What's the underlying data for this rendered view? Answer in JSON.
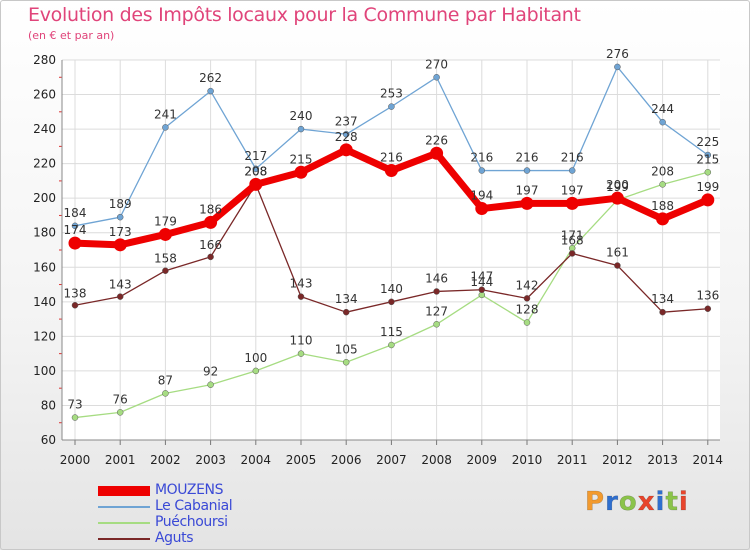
{
  "title": "Evolution des Impôts locaux pour la Commune par Habitant",
  "subtitle": "(en € et par an)",
  "brand": {
    "letters": [
      "P",
      "r",
      "o",
      "x",
      "i",
      "t",
      "i"
    ],
    "colors": [
      "#f29a2e",
      "#2f6fcf",
      "#8bc34a",
      "#e8452c",
      "#2f6fcf",
      "#8bc34a",
      "#e8452c"
    ]
  },
  "chart_data": {
    "type": "line",
    "x": [
      "2000",
      "2001",
      "2002",
      "2003",
      "2004",
      "2005",
      "2006",
      "2007",
      "2008",
      "2009",
      "2010",
      "2011",
      "2012",
      "2013",
      "2014"
    ],
    "ylim": [
      60,
      280
    ],
    "yticks": [
      60,
      80,
      100,
      120,
      140,
      160,
      180,
      200,
      220,
      240,
      260,
      280
    ],
    "grid": true,
    "legend_position": "bottom-left",
    "series": [
      {
        "name": "MOUZENS",
        "color": "#ee0000",
        "values": [
          174,
          173,
          179,
          186,
          208,
          215,
          228,
          216,
          226,
          194,
          197,
          197,
          200,
          188,
          199
        ]
      },
      {
        "name": "Le Cabanial",
        "color": "#6fa4d4",
        "values": [
          184,
          189,
          241,
          262,
          217,
          240,
          237,
          253,
          270,
          216,
          216,
          216,
          276,
          244,
          225
        ]
      },
      {
        "name": "Puéchoursi",
        "color": "#a6dc82",
        "values": [
          73,
          76,
          87,
          92,
          100,
          110,
          105,
          115,
          127,
          144,
          128,
          171,
          199,
          208,
          215
        ]
      },
      {
        "name": "Aguts",
        "color": "#7a2828",
        "values": [
          138,
          143,
          158,
          166,
          208,
          143,
          134,
          140,
          146,
          147,
          142,
          168,
          161,
          134,
          136
        ]
      }
    ]
  }
}
